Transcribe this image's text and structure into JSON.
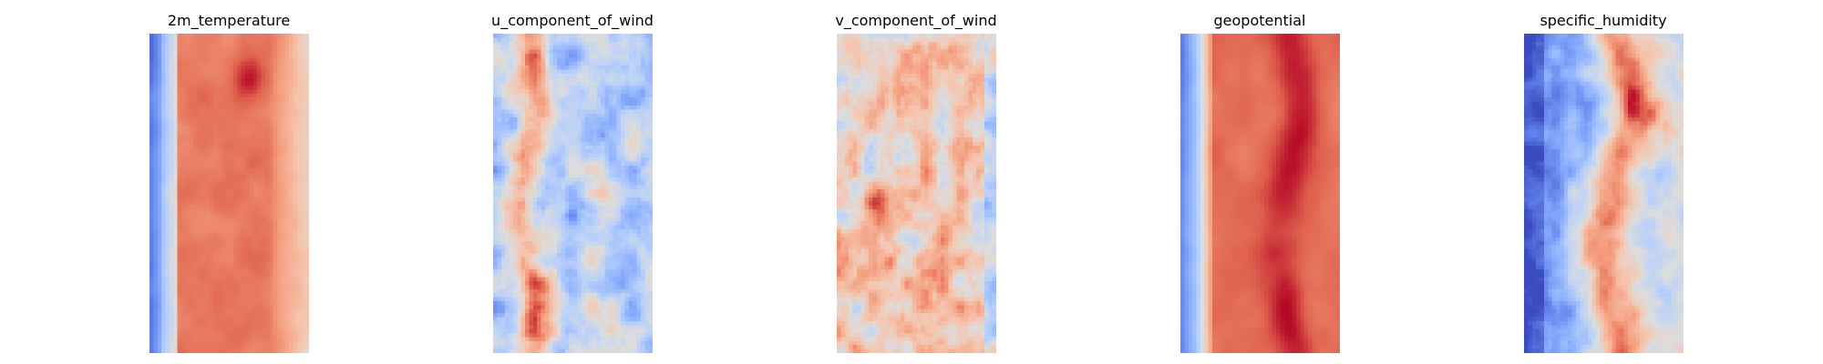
{
  "figure": {
    "background": "#ffffff",
    "colormap": "coolwarm",
    "axes_visible": false
  },
  "chart_data": [
    {
      "type": "heatmap",
      "title": "2m_temperature",
      "colormap": "coolwarm",
      "pattern": "cold narrow band on the left edge, light band, broad warm core with a hot spot near the top, fading to light warm on the right"
    },
    {
      "type": "heatmap",
      "title": "u_component_of_wind",
      "colormap": "coolwarm",
      "pattern": "mostly cool/neutral with warm streaks along the left-center and scattered features"
    },
    {
      "type": "heatmap",
      "title": "v_component_of_wind",
      "colormap": "coolwarm",
      "pattern": "mostly warm/neutral with cool pockets and a hot patch on the left-middle"
    },
    {
      "type": "heatmap",
      "title": "geopotential",
      "colormap": "coolwarm",
      "pattern": "cool band on the left edge, warm body with darker red streaks in the middle"
    },
    {
      "type": "heatmap",
      "title": "specific_humidity",
      "colormap": "coolwarm",
      "pattern": "deep blue on the left, moist warm ridge down the center, cool toward the right"
    }
  ]
}
